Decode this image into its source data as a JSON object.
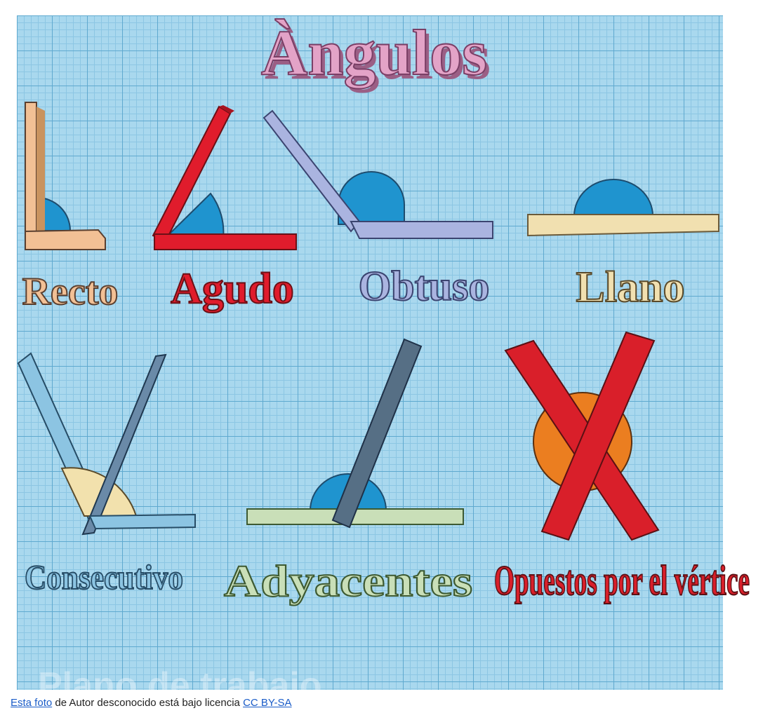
{
  "title": "Àngulos",
  "board_watermark": "Plano de trabajo",
  "labels": {
    "recto": "Recto",
    "agudo": "Agudo",
    "obtuso": "Obtuso",
    "llano": "Llano",
    "consecutivo": "Consecutivo",
    "adyacentes": "Adyacentes",
    "opuestos": "Opuestos por el vértice"
  },
  "credit": {
    "link1": "Esta foto",
    "middle": " de Autor desconocido está bajo licencia ",
    "link2": "CC BY-SA"
  },
  "colors": {
    "grid_bg": "#a9d8ee",
    "title_pink": "#e3a3c7",
    "recto": "#f2c095",
    "agudo": "#e01c2c",
    "obtuso": "#aab4e0",
    "llano": "#f1e0b0",
    "consecutivo": "#8cc4e2",
    "adyacentes": "#c9dfb8",
    "opuestos": "#d91f2a",
    "arc_blue": "#1f94cf",
    "arc_orange": "#eb7e20",
    "arc_cream": "#f2e1ad"
  }
}
